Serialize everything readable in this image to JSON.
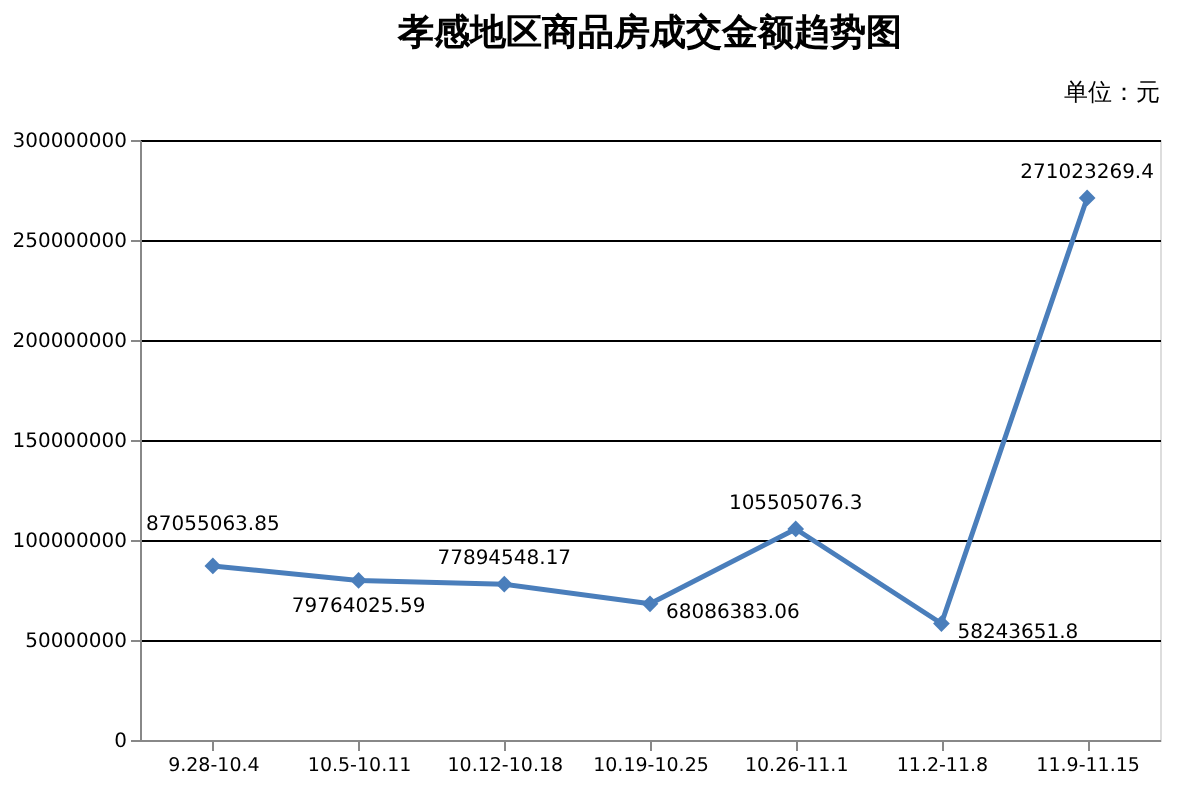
{
  "chart_data": {
    "type": "line",
    "title": "孝感地区商品房成交金额趋势图",
    "annotations": [
      "单位：元"
    ],
    "categories": [
      "9.28-10.4",
      "10.5-10.11",
      "10.12-10.18",
      "10.19-10.25",
      "10.26-11.1",
      "11.2-11.8",
      "11.9-11.15"
    ],
    "series": [
      {
        "color": "#4a7ebb",
        "values": [
          87055063.85,
          79764025.59,
          77894548.17,
          68086383.06,
          105505076.3,
          58243651.8,
          271023269.4
        ]
      }
    ],
    "value_labels": [
      "87055063.85",
      "79764025.59",
      "77894548.17",
      "68086383.06",
      "105505076.3",
      "58243651.8",
      "271023269.4"
    ],
    "ylim": [
      0,
      300000000
    ],
    "yticks": [
      0,
      50000000,
      100000000,
      150000000,
      200000000,
      250000000,
      300000000
    ],
    "grid": "y",
    "marker": "diamond",
    "line_style": "solid",
    "legend": false
  }
}
